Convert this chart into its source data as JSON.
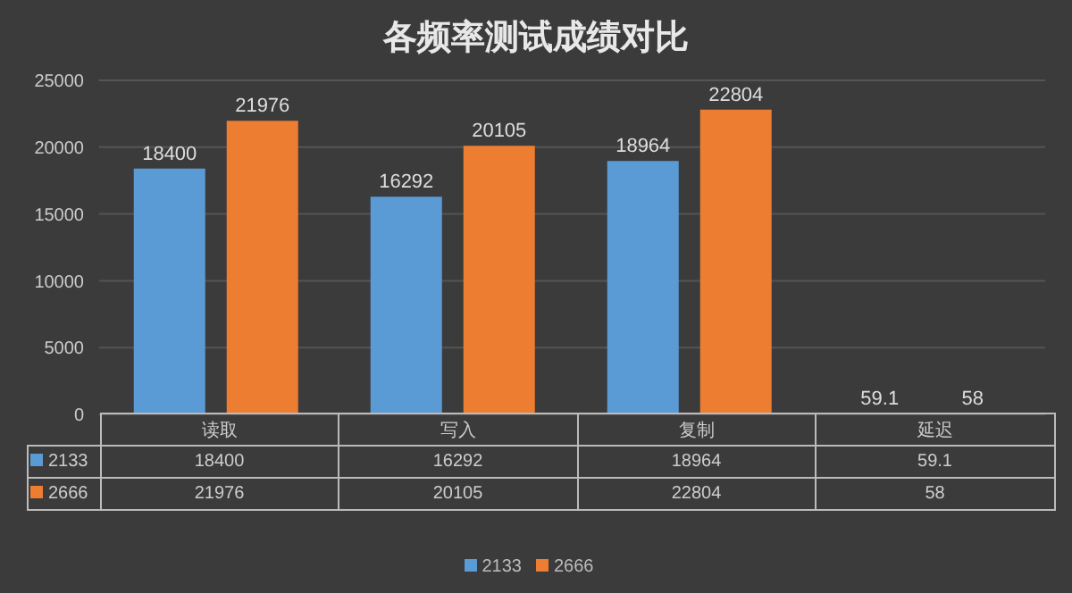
{
  "chart_data": {
    "type": "bar",
    "title": "各频率测试成绩对比",
    "categories": [
      "读取",
      "写入",
      "复制",
      "延迟"
    ],
    "series": [
      {
        "name": "2133",
        "color": "#5b9bd5",
        "values": [
          18400,
          16292,
          18964,
          59.1
        ]
      },
      {
        "name": "2666",
        "color": "#ed7d31",
        "values": [
          21976,
          20105,
          22804,
          58
        ]
      }
    ],
    "ylim": [
      0,
      25000
    ],
    "yticks": [
      0,
      5000,
      10000,
      15000,
      20000,
      25000
    ],
    "grid": "y",
    "legend": "bottom",
    "data_labels": true,
    "annotations": [
      "18400",
      "16292",
      "18964",
      "59.1",
      "21976",
      "20105",
      "22804",
      "58"
    ]
  }
}
